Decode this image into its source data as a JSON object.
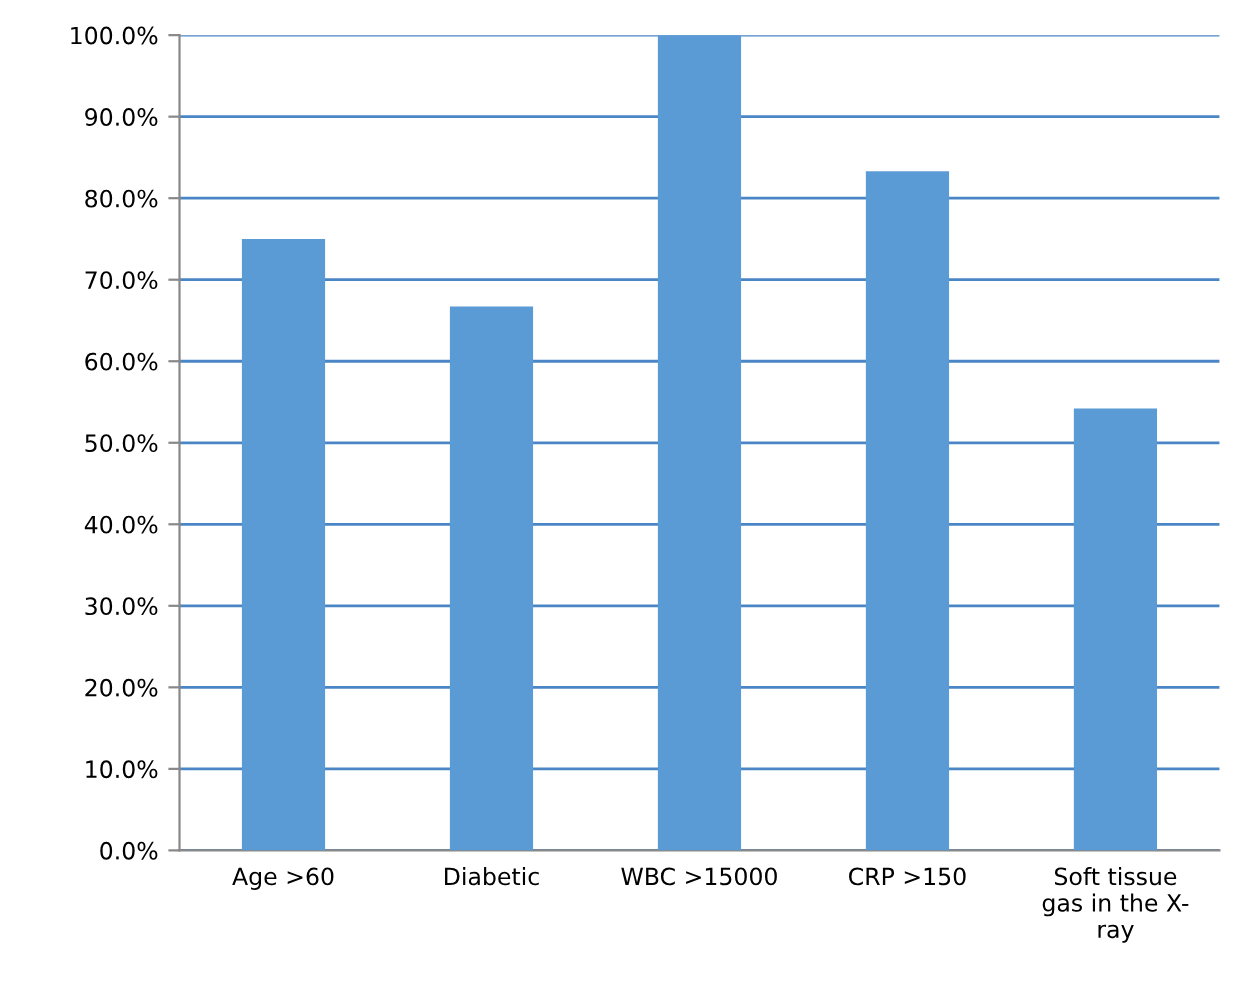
{
  "chart_data": {
    "type": "bar",
    "categories": [
      "Age >60",
      "Diabetic",
      "WBC >15000",
      "CRP >150",
      "Soft tissue\ngas in the X-\nray"
    ],
    "values": [
      75.0,
      66.7,
      100.0,
      83.3,
      54.2
    ],
    "color": "#5b9bd5",
    "ylim": [
      0,
      100
    ],
    "yticks": [
      {
        "value": 0,
        "label": "0.0%"
      },
      {
        "value": 10,
        "label": "10.0%"
      },
      {
        "value": 20,
        "label": "20.0%"
      },
      {
        "value": 30,
        "label": "30.0%"
      },
      {
        "value": 40,
        "label": "40.0%"
      },
      {
        "value": 50,
        "label": "50.0%"
      },
      {
        "value": 60,
        "label": "60.0%"
      },
      {
        "value": 70,
        "label": "70.0%"
      },
      {
        "value": 80,
        "label": "80.0%"
      },
      {
        "value": 90,
        "label": "90.0%"
      },
      {
        "value": 100,
        "label": "100.0%"
      }
    ],
    "grid": "y"
  }
}
